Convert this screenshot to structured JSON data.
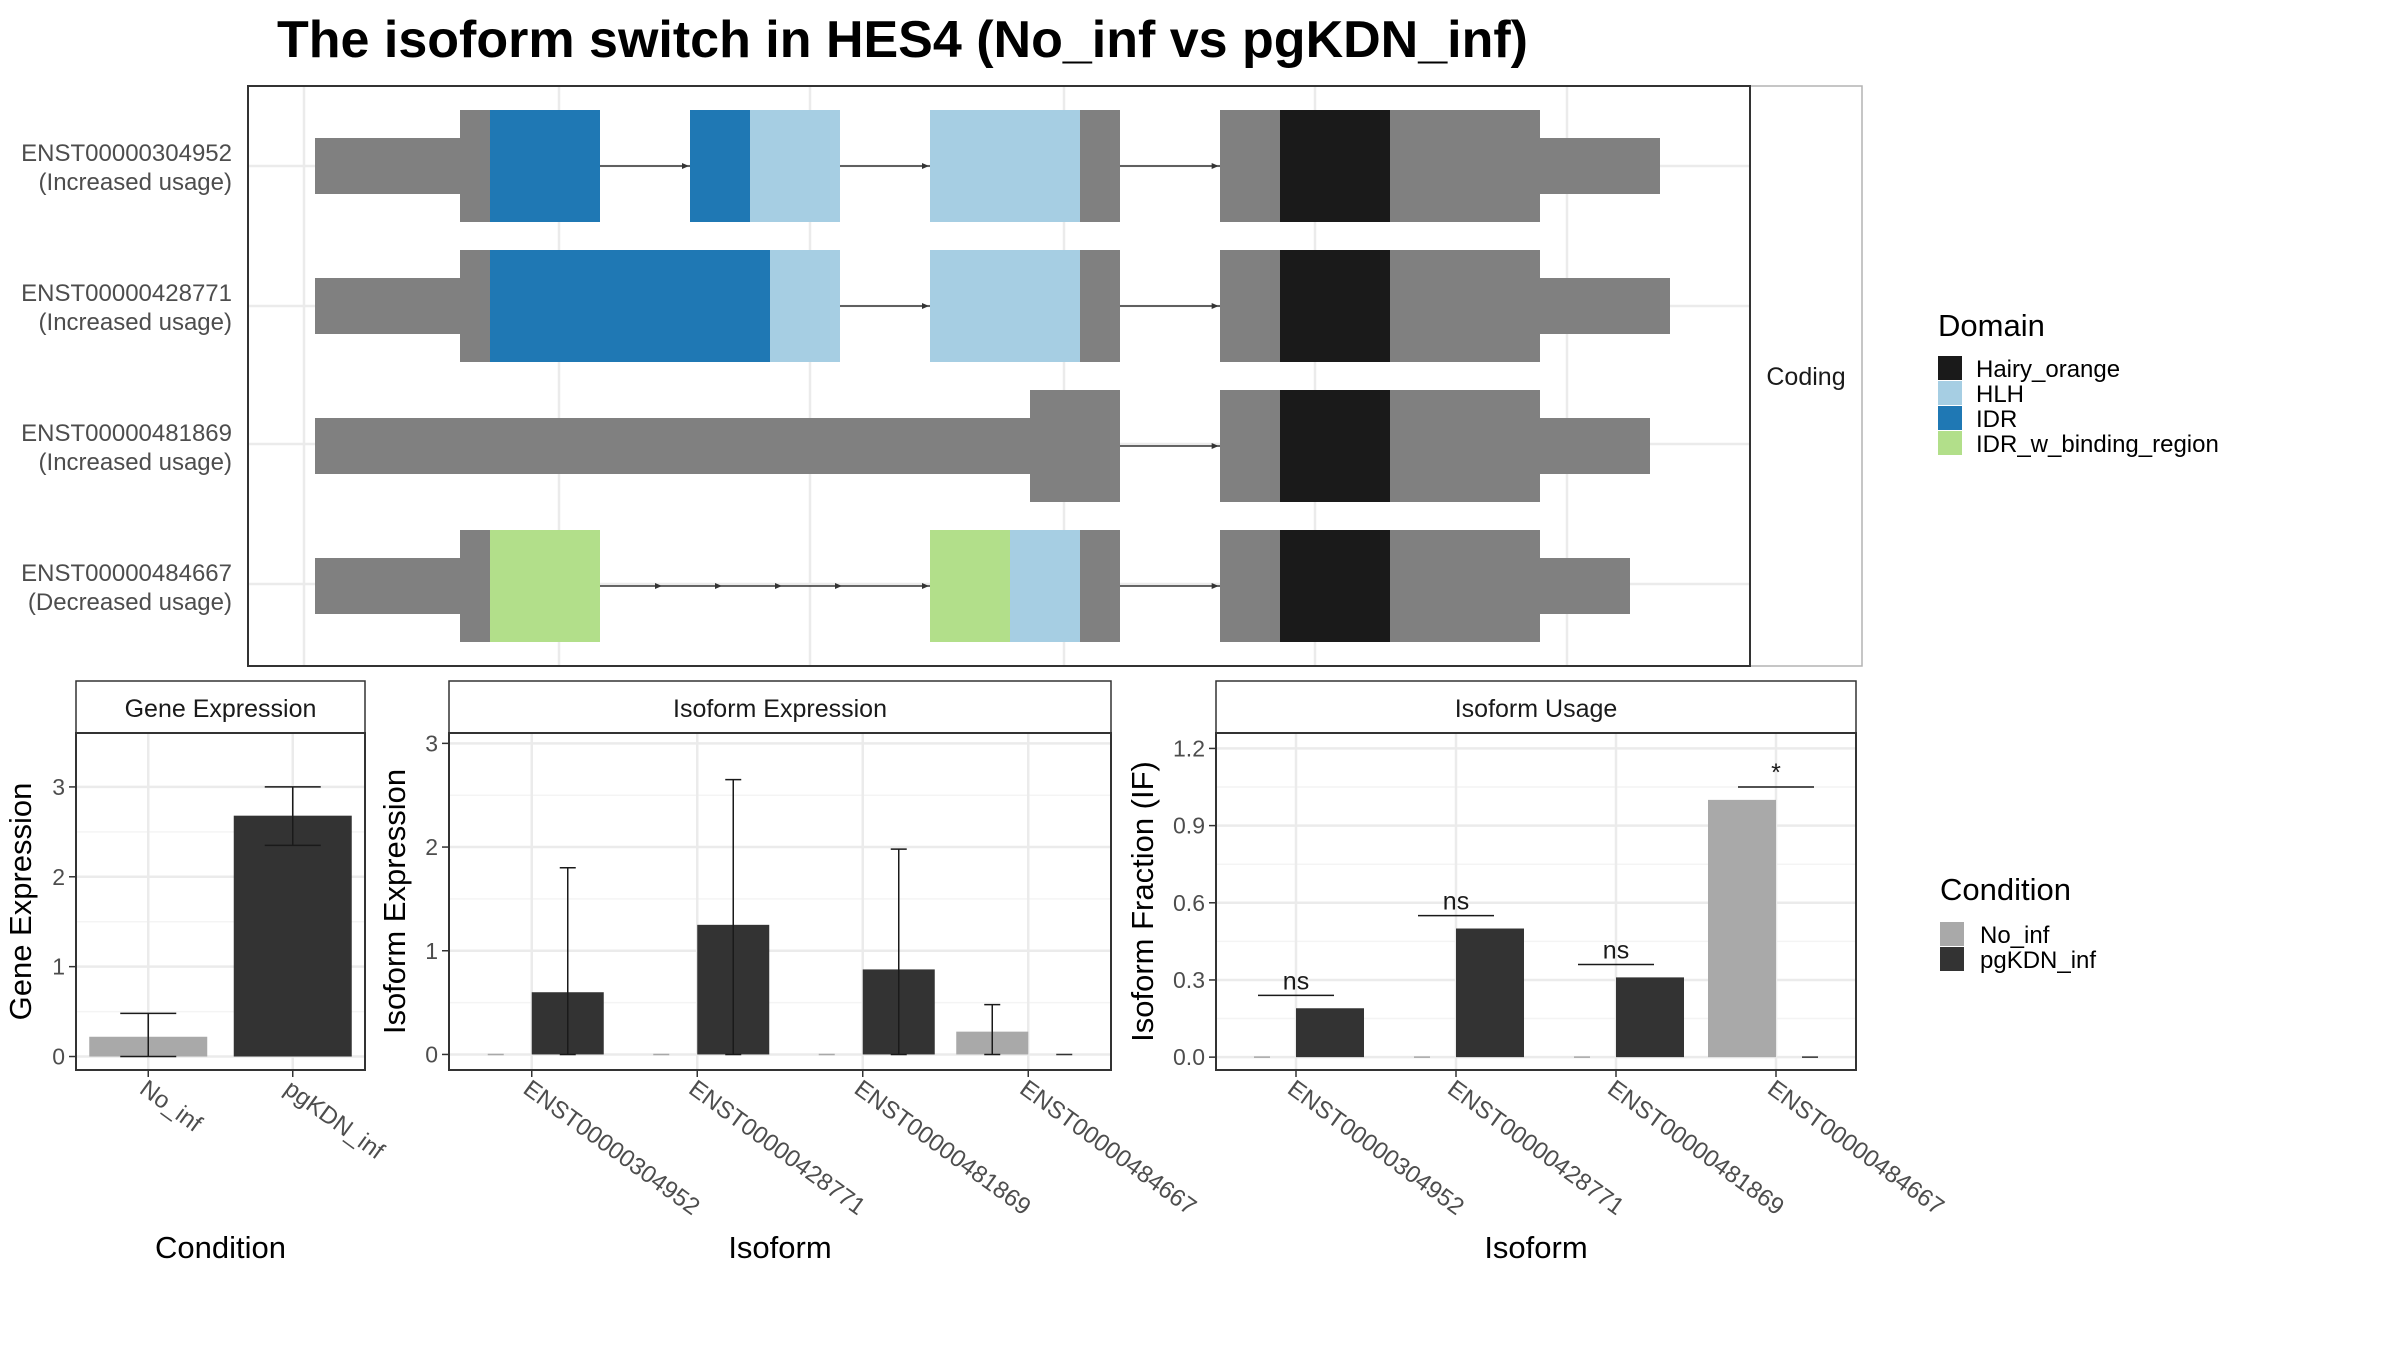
{
  "title": "The isoform switch in HES4 (No_inf vs pgKDN_inf)",
  "colors": {
    "Hairy_orange": "#1a1a1a",
    "HLH": "#a6cee3",
    "IDR": "#1f78b4",
    "IDR_w_binding_region": "#b2df8a",
    "noncoding": "#808080",
    "No_inf": "#a9a9a9",
    "pgKDN_inf": "#333333"
  },
  "structure": {
    "strip_label": "Coding",
    "isoforms": [
      {
        "id": "ENST00000304952",
        "usage": "(Increased usage)",
        "segments": [
          {
            "s": 0,
            "e": 145,
            "type": "utr"
          },
          {
            "s": 145,
            "e": 175,
            "type": "cds"
          },
          {
            "s": 175,
            "e": 285,
            "type": "domain",
            "domain": "IDR"
          },
          {
            "s": 375,
            "e": 435,
            "type": "domain",
            "domain": "IDR"
          },
          {
            "s": 435,
            "e": 525,
            "type": "domain",
            "domain": "HLH"
          },
          {
            "s": 615,
            "e": 765,
            "type": "domain",
            "domain": "HLH"
          },
          {
            "s": 765,
            "e": 805,
            "type": "cds"
          },
          {
            "s": 905,
            "e": 965,
            "type": "cds"
          },
          {
            "s": 965,
            "e": 1075,
            "type": "domain",
            "domain": "Hairy_orange"
          },
          {
            "s": 1075,
            "e": 1225,
            "type": "cds"
          },
          {
            "s": 1225,
            "e": 1345,
            "type": "utr"
          }
        ]
      },
      {
        "id": "ENST00000428771",
        "usage": "(Increased usage)",
        "segments": [
          {
            "s": 0,
            "e": 145,
            "type": "utr"
          },
          {
            "s": 145,
            "e": 175,
            "type": "cds"
          },
          {
            "s": 175,
            "e": 455,
            "type": "domain",
            "domain": "IDR"
          },
          {
            "s": 455,
            "e": 525,
            "type": "domain",
            "domain": "HLH"
          },
          {
            "s": 615,
            "e": 765,
            "type": "domain",
            "domain": "HLH"
          },
          {
            "s": 765,
            "e": 805,
            "type": "cds"
          },
          {
            "s": 905,
            "e": 965,
            "type": "cds"
          },
          {
            "s": 965,
            "e": 1075,
            "type": "domain",
            "domain": "Hairy_orange"
          },
          {
            "s": 1075,
            "e": 1225,
            "type": "cds"
          },
          {
            "s": 1225,
            "e": 1355,
            "type": "utr"
          }
        ]
      },
      {
        "id": "ENST00000481869",
        "usage": "(Increased usage)",
        "segments": [
          {
            "s": 0,
            "e": 715,
            "type": "utr"
          },
          {
            "s": 715,
            "e": 805,
            "type": "cds"
          },
          {
            "s": 905,
            "e": 965,
            "type": "cds"
          },
          {
            "s": 965,
            "e": 1075,
            "type": "domain",
            "domain": "Hairy_orange"
          },
          {
            "s": 1075,
            "e": 1225,
            "type": "cds"
          },
          {
            "s": 1225,
            "e": 1335,
            "type": "utr"
          }
        ]
      },
      {
        "id": "ENST00000484667",
        "usage": "(Decreased usage)",
        "segments": [
          {
            "s": 0,
            "e": 145,
            "type": "utr"
          },
          {
            "s": 145,
            "e": 175,
            "type": "cds"
          },
          {
            "s": 175,
            "e": 285,
            "type": "domain",
            "domain": "IDR_w_binding_region"
          },
          {
            "s": 615,
            "e": 695,
            "type": "domain",
            "domain": "IDR_w_binding_region"
          },
          {
            "s": 695,
            "e": 765,
            "type": "domain",
            "domain": "HLH"
          },
          {
            "s": 765,
            "e": 805,
            "type": "cds"
          },
          {
            "s": 905,
            "e": 965,
            "type": "cds"
          },
          {
            "s": 965,
            "e": 1075,
            "type": "domain",
            "domain": "Hairy_orange"
          },
          {
            "s": 1075,
            "e": 1225,
            "type": "cds"
          },
          {
            "s": 1225,
            "e": 1315,
            "type": "utr"
          }
        ]
      }
    ]
  },
  "legend_domain": {
    "title": "Domain",
    "items": [
      "Hairy_orange",
      "HLH",
      "IDR",
      "IDR_w_binding_region"
    ]
  },
  "legend_condition": {
    "title": "Condition",
    "items": [
      "No_inf",
      "pgKDN_inf"
    ]
  },
  "chart_data": [
    {
      "type": "bar",
      "strip": "Gene Expression",
      "xlabel": "Condition",
      "ylabel": "Gene Expression",
      "categories": [
        "No_inf",
        "pgKDN_inf"
      ],
      "values": [
        0.22,
        2.68
      ],
      "err_low": [
        0.0,
        2.35
      ],
      "err_high": [
        0.48,
        3.0
      ],
      "ylim": [
        -0.15,
        3.6
      ],
      "yticks": [
        0,
        1,
        2,
        3
      ]
    },
    {
      "type": "bar",
      "strip": "Isoform Expression",
      "xlabel": "Isoform",
      "ylabel": "Isoform Expression",
      "categories": [
        "ENST00000304952",
        "ENST00000428771",
        "ENST00000481869",
        "ENST00000484667"
      ],
      "series": [
        {
          "name": "No_inf",
          "values": [
            0,
            0,
            0,
            0.22
          ],
          "err_low": [
            0,
            0,
            0,
            0.0
          ],
          "err_high": [
            0,
            0,
            0,
            0.48
          ]
        },
        {
          "name": "pgKDN_inf",
          "values": [
            0.6,
            1.25,
            0.82,
            0
          ],
          "err_low": [
            0.0,
            0.0,
            0.0,
            0
          ],
          "err_high": [
            1.8,
            2.65,
            1.98,
            0
          ]
        }
      ],
      "ylim": [
        -0.15,
        3.1
      ],
      "yticks": [
        0,
        1,
        2,
        3
      ]
    },
    {
      "type": "bar",
      "strip": "Isoform Usage",
      "xlabel": "Isoform",
      "ylabel": "Isoform Fraction (IF)",
      "categories": [
        "ENST00000304952",
        "ENST00000428771",
        "ENST00000481869",
        "ENST00000484667"
      ],
      "series": [
        {
          "name": "No_inf",
          "values": [
            0,
            0,
            0,
            1.0
          ]
        },
        {
          "name": "pgKDN_inf",
          "values": [
            0.19,
            0.5,
            0.31,
            0
          ]
        }
      ],
      "significance": [
        "ns",
        "ns",
        "ns",
        "*"
      ],
      "sig_y": [
        0.24,
        0.55,
        0.36,
        1.05
      ],
      "ylim": [
        -0.05,
        1.26
      ],
      "yticks": [
        0.0,
        0.3,
        0.6,
        0.9,
        1.2
      ],
      "ytick_labels": [
        "0.0",
        "0.3",
        "0.6",
        "0.9",
        "1.2"
      ]
    }
  ]
}
